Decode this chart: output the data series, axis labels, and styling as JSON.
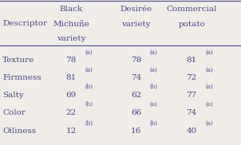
{
  "col_headers": [
    [
      "Descriptor"
    ],
    [
      "Black",
      "Michuñe",
      "variety"
    ],
    [
      "Desirée",
      "variety"
    ],
    [
      "Commercial",
      "potato"
    ]
  ],
  "row_values": [
    [
      "Texture",
      "78",
      "a",
      "78",
      "a",
      "81",
      "a"
    ],
    [
      "Firmness",
      "81",
      "a",
      "74",
      "a",
      "72",
      "a"
    ],
    [
      "Salty",
      "69",
      "b",
      "62",
      "b",
      "77",
      "a"
    ],
    [
      "Color",
      "22",
      "b",
      "66",
      "a",
      "74",
      "a"
    ],
    [
      "Oiliness",
      "12",
      "b",
      "16",
      "b",
      "40",
      "a"
    ]
  ],
  "bg_color": "#f0ede8",
  "text_color": "#4a4a8a",
  "line_color": "#5a5a9a",
  "font_size": 7.5,
  "sup_font_size": 5.0
}
